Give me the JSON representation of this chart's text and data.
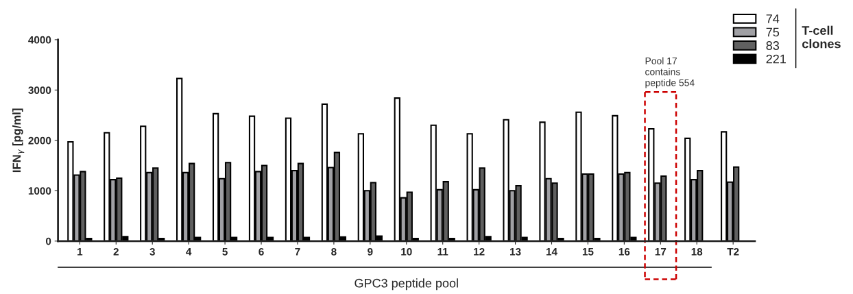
{
  "chart_data": {
    "type": "bar",
    "ylabel": "IFN$_{γ}$ [pg/ml]",
    "xlabel": "GPC3 peptide pool",
    "legend_title": "T-cell clones",
    "categories": [
      "1",
      "2",
      "3",
      "4",
      "5",
      "6",
      "7",
      "8",
      "9",
      "10",
      "11",
      "12",
      "13",
      "14",
      "15",
      "16",
      "17",
      "18",
      "T2"
    ],
    "series": [
      {
        "name": "74",
        "color": "#ffffff",
        "values": [
          1970,
          2150,
          2280,
          3230,
          2530,
          2480,
          2440,
          2720,
          2130,
          2840,
          2300,
          2130,
          2410,
          2360,
          2560,
          2490,
          2230,
          2040,
          2170
        ]
      },
      {
        "name": "75",
        "color": "#a0a0a4",
        "values": [
          1310,
          1220,
          1360,
          1360,
          1240,
          1380,
          1400,
          1460,
          1000,
          860,
          1020,
          1020,
          1000,
          1240,
          1330,
          1330,
          1150,
          1220,
          1170
        ]
      },
      {
        "name": "83",
        "color": "#606060",
        "values": [
          1380,
          1250,
          1450,
          1540,
          1560,
          1500,
          1540,
          1760,
          1160,
          970,
          1180,
          1450,
          1100,
          1150,
          1330,
          1360,
          1290,
          1400,
          1470
        ]
      },
      {
        "name": "221",
        "color": "#000000",
        "values": [
          50,
          90,
          50,
          70,
          70,
          70,
          70,
          80,
          100,
          50,
          50,
          90,
          70,
          50,
          50,
          70,
          null,
          null,
          null
        ]
      }
    ],
    "ylim": [
      0,
      4000
    ],
    "yticks": [
      0,
      1000,
      2000,
      3000,
      4000
    ],
    "grid": false,
    "legend": "top right",
    "annotations": [
      "Pool 17 contains peptide 554"
    ]
  }
}
